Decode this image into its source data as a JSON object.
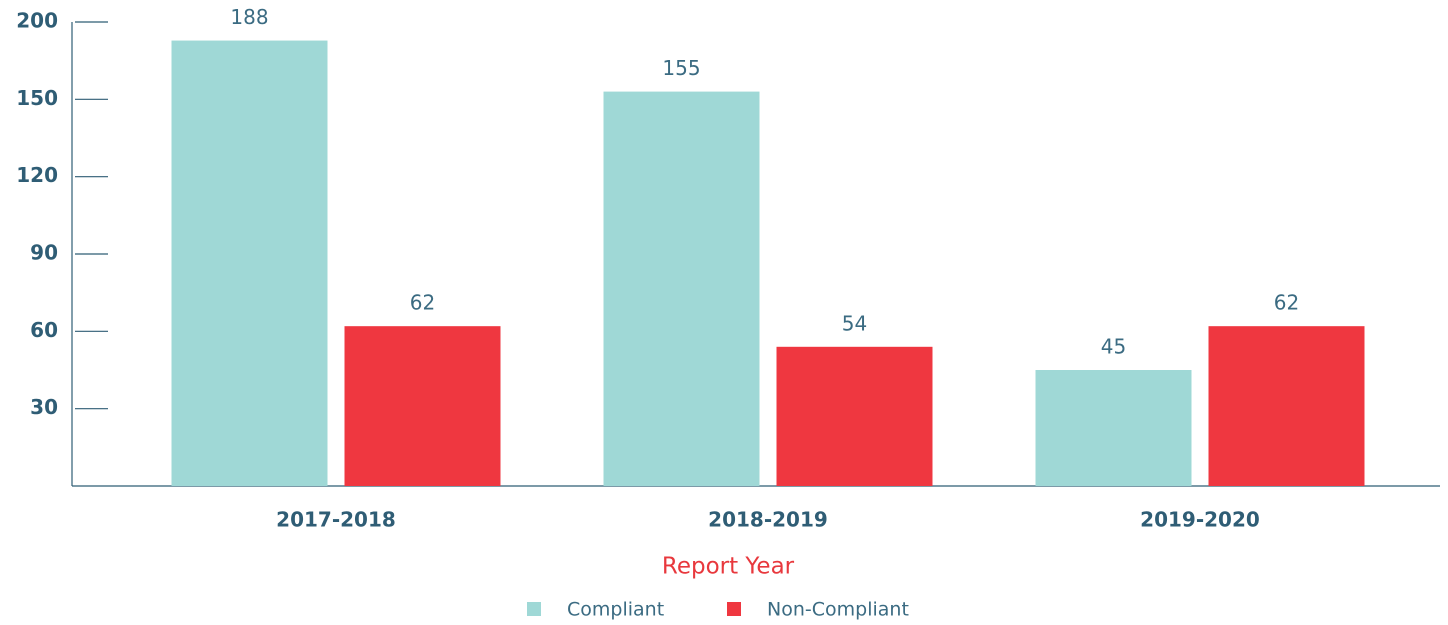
{
  "chart_data": {
    "type": "bar",
    "x_label": "Report Year",
    "categories": [
      "2017-2018",
      "2018-2019",
      "2019-2020"
    ],
    "series": [
      {
        "name": "Compliant",
        "color": "#9fd8d6",
        "values": [
          188,
          155,
          45
        ]
      },
      {
        "name": "Non-Compliant",
        "color": "#ef3740",
        "values": [
          62,
          54,
          62
        ]
      }
    ],
    "ylim": [
      0,
      200
    ],
    "yticks": [
      30,
      60,
      90,
      120,
      150,
      200
    ],
    "legend": "bottom"
  }
}
